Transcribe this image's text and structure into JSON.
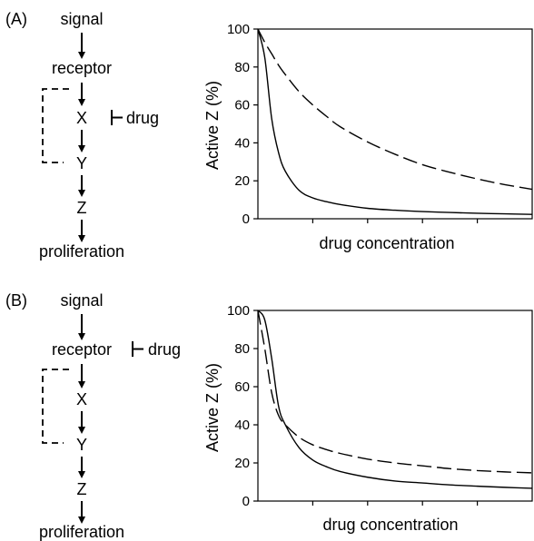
{
  "panels": [
    {
      "panel_label": "(A)",
      "pathway": {
        "nodes": [
          "signal",
          "receptor",
          "X",
          "Y",
          "Z",
          "proliferation"
        ],
        "inhibitor": "drug",
        "inhibitor_target": "X",
        "feedback": {
          "from": "Y",
          "to": "receptor",
          "style": "dashed"
        }
      }
    },
    {
      "panel_label": "(B)",
      "pathway": {
        "nodes": [
          "signal",
          "receptor",
          "X",
          "Y",
          "Z",
          "proliferation"
        ],
        "inhibitor": "drug",
        "inhibitor_target": "receptor",
        "feedback": {
          "from": "Y",
          "to": "receptor",
          "style": "dashed"
        }
      }
    }
  ],
  "chart_data": [
    {
      "type": "line",
      "title": "",
      "xlabel": "drug concentration",
      "ylabel": "Active Z (%)",
      "ylim": [
        0,
        100
      ],
      "xlim": [
        0,
        10
      ],
      "yticks": [
        0,
        20,
        40,
        60,
        80,
        100
      ],
      "xticks_unlabeled": [
        2,
        4,
        6,
        8
      ],
      "grid": false,
      "x": [
        0,
        0.25,
        0.5,
        0.75,
        1,
        1.5,
        2,
        2.5,
        3,
        4,
        5,
        6,
        7,
        8,
        9,
        10
      ],
      "series": [
        {
          "style": "solid",
          "values": [
            100,
            85,
            53,
            35,
            25,
            15,
            11,
            9,
            7.5,
            5.5,
            4.5,
            3.8,
            3.3,
            2.9,
            2.6,
            2.3
          ]
        },
        {
          "style": "dashed",
          "values": [
            100,
            93,
            87,
            81,
            76,
            67,
            60,
            54,
            48.5,
            40.5,
            34,
            28.5,
            24.5,
            21,
            18,
            15.5
          ]
        }
      ]
    },
    {
      "type": "line",
      "title": "",
      "xlabel": "drug concentration",
      "ylabel": "Active Z (%)",
      "ylim": [
        0,
        100
      ],
      "xlim": [
        0,
        10
      ],
      "yticks": [
        0,
        20,
        40,
        60,
        80,
        100
      ],
      "xticks_unlabeled": [
        2,
        4,
        6,
        8
      ],
      "grid": false,
      "x": [
        0,
        0.25,
        0.5,
        0.75,
        1,
        1.5,
        2,
        2.5,
        3,
        4,
        5,
        6,
        7,
        8,
        9,
        10
      ],
      "series": [
        {
          "style": "solid",
          "values": [
            100,
            95,
            75,
            50,
            40,
            28,
            21.5,
            18,
            15.5,
            12.5,
            10.5,
            9.5,
            8.5,
            7.8,
            7.2,
            6.7
          ]
        },
        {
          "style": "dashed",
          "values": [
            100,
            80,
            57,
            45,
            40,
            33.5,
            29.5,
            27,
            25,
            22,
            20,
            18.5,
            17,
            16,
            15.3,
            14.8
          ]
        }
      ]
    }
  ]
}
